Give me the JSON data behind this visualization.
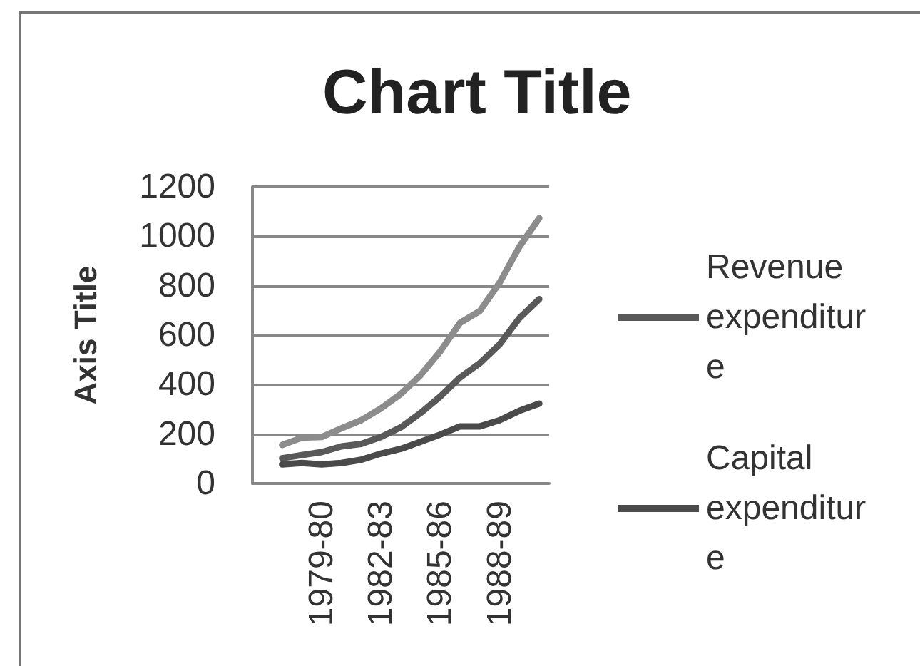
{
  "chart_data": {
    "type": "line",
    "title": "Chart Title",
    "ylabel": "Axis Title",
    "categories": [
      null,
      null,
      null,
      "1979-80",
      null,
      null,
      "1982-83",
      null,
      null,
      "1985-86",
      null,
      null,
      "1988-89",
      null,
      null
    ],
    "series": [
      {
        "name": "Revenue expenditure",
        "color": "#595959",
        "values": [
          null,
          102,
          115,
          127,
          150,
          160,
          188,
          227,
          285,
          352,
          429,
          487,
          563,
          669,
          746
        ]
      },
      {
        "name": "Capital expenditure",
        "color": "#4a4a4a",
        "values": [
          null,
          77,
          83,
          77,
          83,
          96,
          121,
          140,
          169,
          198,
          231,
          231,
          256,
          294,
          323
        ]
      },
      {
        "color": "#8c8c8c",
        "values": [
          null,
          156,
          185,
          188,
          223,
          256,
          304,
          362,
          438,
          535,
          650,
          698,
          813,
          958,
          1073
        ]
      }
    ],
    "ylim": [
      0,
      1200
    ],
    "yticks": [
      0,
      200,
      400,
      600,
      800,
      1000,
      1200
    ],
    "grid": "y",
    "legend": "right",
    "marker": "none",
    "line_style": "solid"
  }
}
